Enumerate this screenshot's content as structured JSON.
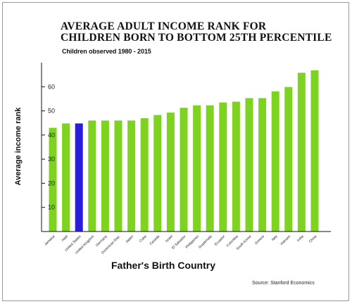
{
  "chart_data": {
    "type": "bar",
    "title": "AVERAGE ADULT INCOME RANK FOR\nCHILDREN BORN TO BOTTOM 25TH PERCENTILE",
    "subtitle": "Children observed 1980 - 2015",
    "xlabel": "Father's Birth Country",
    "ylabel": "Average income rank",
    "source": "Source: Stanford Economics",
    "ylim": [
      0,
      70
    ],
    "yticks": [
      10,
      20,
      30,
      40,
      50,
      60
    ],
    "grid": false,
    "categories": [
      "Jamaica",
      "Haiti",
      "United States",
      "United Kingdom",
      "Germany",
      "Dominican Rep.",
      "Japan",
      "Cuba",
      "Canada",
      "Israel",
      "El Salvador",
      "Philippines",
      "Guatemala",
      "Ecuador",
      "Colombia",
      "South Korea",
      "Greece",
      "Italy",
      "Vietnam",
      "India",
      "China"
    ],
    "values": [
      43,
      44.8,
      44.8,
      46,
      46,
      46,
      46,
      47,
      48.3,
      49.3,
      51.3,
      52.3,
      52.3,
      53.5,
      53.8,
      55.3,
      55.3,
      58.1,
      59.9,
      65.8,
      66.8
    ],
    "colors": {
      "default": "#7ed321",
      "highlight": "#2a1de0",
      "highlight_category": "United States"
    }
  }
}
